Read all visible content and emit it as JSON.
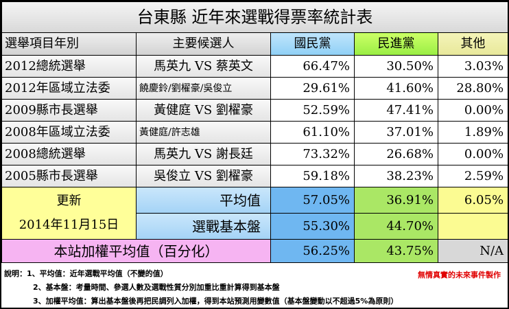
{
  "title": "台東縣 近年來選戰得票率統計表",
  "headers": {
    "item": "選舉項目年別",
    "candidates": "主要候選人",
    "kmt": "國民黨",
    "dpp": "民進黨",
    "other": "其他"
  },
  "rows": [
    {
      "item": "2012總統選舉",
      "candidates": "馬英九 VS 蔡英文",
      "small": false,
      "kmt": "66.47%",
      "dpp": "30.50%",
      "other": "3.03%"
    },
    {
      "item": "2012年區域立法委",
      "candidates": "饒慶鈴/劉櫂豪/吳俊立",
      "small": true,
      "kmt": "29.61%",
      "dpp": "41.60%",
      "other": "28.80%"
    },
    {
      "item": "2009縣市長選舉",
      "candidates": "黃健庭 VS 劉櫂豪",
      "small": false,
      "kmt": "52.59%",
      "dpp": "47.41%",
      "other": "0.00%"
    },
    {
      "item": "2008年區域立法委",
      "candidates": "黃健庭/許志雄",
      "small": true,
      "kmt": "61.10%",
      "dpp": "37.01%",
      "other": "1.89%"
    },
    {
      "item": "2008總統選舉",
      "candidates": "馬英九 VS 謝長廷",
      "small": false,
      "kmt": "73.32%",
      "dpp": "26.68%",
      "other": "0.00%"
    },
    {
      "item": "2005縣市長選舉",
      "candidates": "吳俊立 VS 劉櫂豪",
      "small": false,
      "kmt": "59.18%",
      "dpp": "38.23%",
      "other": "2.59%"
    }
  ],
  "update": {
    "label": "更新",
    "date": "2014年11月15日"
  },
  "average": {
    "label": "平均值",
    "kmt": "57.05%",
    "dpp": "36.91%",
    "other": "6.05%"
  },
  "base": {
    "label": "選戰基本盤",
    "kmt": "55.30%",
    "dpp": "44.70%",
    "other": ""
  },
  "weighted": {
    "label": "本站加權平均值（百分化）",
    "kmt": "56.25%",
    "dpp": "43.75%",
    "other": "N/A"
  },
  "notes": [
    "說明：1、平均值：近年選戰平均值（不變的值）",
    "2、基本盤：考量時間、參選人數及選戰性質分別加重比重計算得到基本盤",
    "3、加權平均值：算出基本盤後再把民調列入加權，得到本站預測用變數值（基本盤變動以不超過5%為原則）"
  ],
  "credit": "無情真實的未來事件製作",
  "colors": {
    "kmt_header": "#8fd0f6",
    "dpp_header": "#99ee44",
    "other_header": "#e8e89a",
    "update_bg": "#ffff99",
    "weighted_label_bg": "#f6b4f2",
    "credit_text": "#e00000"
  }
}
